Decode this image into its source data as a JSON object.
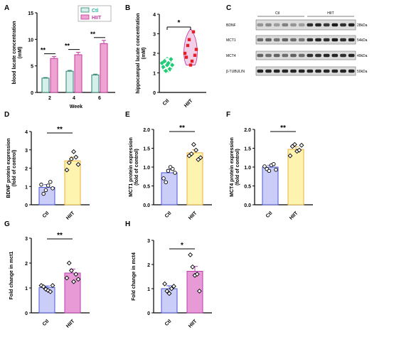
{
  "colors": {
    "ctl_fill": "#c9cdf8",
    "ctl_stroke": "#4c57d6",
    "hiit_fill": "#fff3b0",
    "hiit_stroke": "#e9b33c",
    "mct1_hiit_fill": "#e89ad6",
    "mct1_hiit_stroke": "#b93fb0",
    "a_ctl_fill": "#d3f1ea",
    "a_ctl_stroke": "#2f7f6f",
    "a_hiit_fill": "#eea3d3",
    "a_hiit_stroke": "#c0399c",
    "b_ctl": "#22cc77",
    "b_hiit_fill": "#f1d0e8",
    "b_hiit_stroke": "#c63fa6",
    "b_hiit_point": "#e0202a"
  },
  "chart_data": [
    {
      "panel": "A",
      "type": "bar",
      "categories": [
        "2",
        "4",
        "6"
      ],
      "series": [
        {
          "name": "Ctl",
          "values": [
            2.7,
            4.0,
            3.3
          ],
          "errors": [
            0.1,
            0.15,
            0.15
          ]
        },
        {
          "name": "HIIT",
          "values": [
            6.4,
            7.1,
            9.2
          ],
          "errors": [
            0.35,
            0.45,
            0.6
          ]
        }
      ],
      "xlabel": "Week",
      "ylabel": "blood lacate concentration (mM)",
      "ylim": [
        0,
        15
      ],
      "yticks": [
        "0",
        "5",
        "10",
        "15"
      ],
      "significance": [
        "**",
        "**",
        "**"
      ]
    },
    {
      "panel": "B",
      "type": "scatter",
      "categories": [
        "Ctl",
        "HIIT"
      ],
      "points": [
        [
          1.5,
          1.3,
          1.6,
          1.1,
          1.4,
          1.5,
          1.2,
          1.7,
          1.4
        ],
        [
          2.0,
          1.8,
          2.4,
          2.7,
          1.4,
          1.6,
          3.1,
          1.9,
          2.2
        ]
      ],
      "ylabel": "hippocampal lacate concentration (mM)",
      "ylim": [
        0,
        4
      ],
      "yticks": [
        "0",
        "1",
        "2",
        "3",
        "4"
      ],
      "significance": "*"
    },
    {
      "panel": "D",
      "type": "bar",
      "categories": [
        "Ctl",
        "HIIT"
      ],
      "values": [
        0.95,
        2.4
      ],
      "errors": [
        0.15,
        0.2
      ],
      "points": [
        [
          1.1,
          0.6,
          0.8,
          1.05,
          1.25,
          0.9
        ],
        [
          1.9,
          2.3,
          2.5,
          2.9,
          2.6,
          2.2
        ]
      ],
      "ylabel": "BDNF protein expression (fold of control)",
      "ylim": [
        0,
        4
      ],
      "yticks": [
        "0",
        "1",
        "2",
        "3",
        "4"
      ],
      "significance": "**"
    },
    {
      "panel": "E",
      "type": "bar",
      "categories": [
        "Ctl",
        "HIIT"
      ],
      "values": [
        0.85,
        1.38
      ],
      "errors": [
        0.08,
        0.08
      ],
      "points": [
        [
          0.7,
          0.6,
          0.9,
          1.0,
          0.95,
          0.85
        ],
        [
          1.3,
          1.35,
          1.6,
          1.45,
          1.2,
          1.25
        ]
      ],
      "ylabel": "MCT1 protein expression (fold of control)",
      "ylim": [
        0,
        2.0
      ],
      "yticks": [
        "0.0",
        "0.5",
        "1.0",
        "1.5",
        "2.0"
      ],
      "significance": "**"
    },
    {
      "panel": "F",
      "type": "bar",
      "categories": [
        "Ctl",
        "HIIT"
      ],
      "values": [
        1.0,
        1.47
      ],
      "errors": [
        0.05,
        0.07
      ],
      "points": [
        [
          1.02,
          0.95,
          0.9,
          1.05,
          1.08,
          0.93
        ],
        [
          1.3,
          1.55,
          1.6,
          1.42,
          1.45,
          1.58
        ]
      ],
      "ylabel": "MCT4 protein expression (fold of control)",
      "ylim": [
        0,
        2.0
      ],
      "yticks": [
        "0.0",
        "0.5",
        "1.0",
        "1.5",
        "2.0"
      ],
      "significance": "**"
    },
    {
      "panel": "G",
      "type": "bar",
      "categories": [
        "Ctl",
        "HIIT"
      ],
      "values": [
        1.02,
        1.6
      ],
      "errors": [
        0.06,
        0.16
      ],
      "points": [
        [
          1.1,
          1.05,
          0.95,
          0.9,
          0.85,
          1.1
        ],
        [
          1.4,
          2.0,
          1.7,
          1.25,
          1.55,
          1.35
        ]
      ],
      "ylabel": "Fold change in mct1",
      "ylim": [
        0,
        3
      ],
      "yticks": [
        "0",
        "1",
        "2",
        "3"
      ],
      "significance": "**"
    },
    {
      "panel": "H",
      "type": "bar",
      "categories": [
        "Ctl",
        "HIIT"
      ],
      "values": [
        1.0,
        1.72
      ],
      "errors": [
        0.12,
        0.2
      ],
      "points": [
        [
          1.2,
          0.9,
          0.8,
          1.0,
          1.1
        ],
        [
          2.4,
          1.9,
          1.55,
          1.6,
          0.9
        ]
      ],
      "ylabel": "Fold change in mct4",
      "ylim": [
        0,
        3
      ],
      "yticks": [
        "0",
        "1",
        "2",
        "3"
      ],
      "significance": "*"
    }
  ],
  "panel_labels": [
    "A",
    "B",
    "C",
    "D",
    "E",
    "F",
    "G",
    "H"
  ],
  "legend_a": {
    "ctl": "Ctl",
    "hiit": "HIIT"
  },
  "blot": {
    "group_labels": [
      "Ctl",
      "HIIT"
    ],
    "rows": [
      {
        "name": "BDNF",
        "size": "28kDa"
      },
      {
        "name": "MCT1",
        "size": "54kDa"
      },
      {
        "name": "MCT4",
        "size": "49kDa"
      },
      {
        "name": "β-TUBULIN",
        "size": "50kDa"
      }
    ],
    "lanes": 12
  }
}
